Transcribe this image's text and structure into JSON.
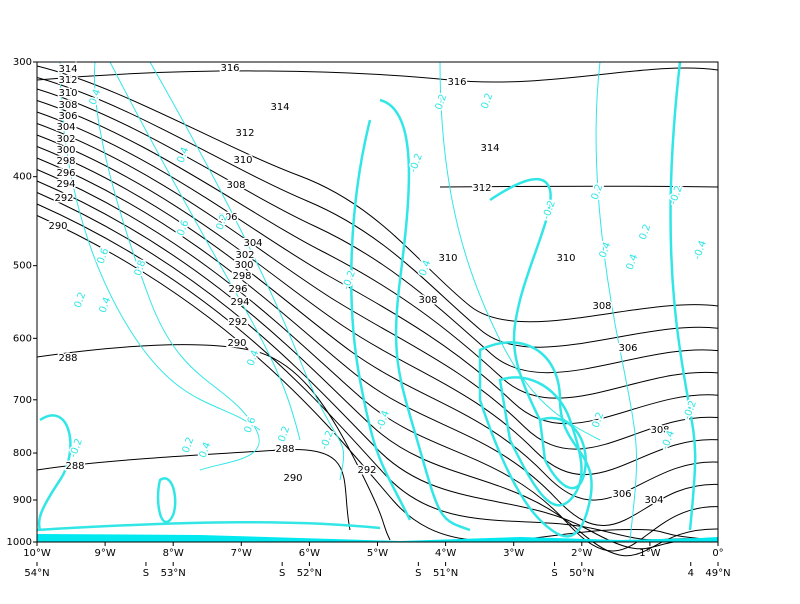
{
  "chart_data": {
    "type": "contour",
    "log_y": true,
    "ylim": [
      1000,
      300
    ],
    "yticks": [
      300,
      400,
      500,
      600,
      700,
      800,
      900,
      1000
    ],
    "xlim": [
      -10,
      0
    ],
    "xticks": [
      {
        "value": -10,
        "label": "10°W"
      },
      {
        "value": -9,
        "label": "9°W"
      },
      {
        "value": -8,
        "label": "8°W"
      },
      {
        "value": -7,
        "label": "7°W"
      },
      {
        "value": -6,
        "label": "6°W"
      },
      {
        "value": -5,
        "label": "5°W"
      },
      {
        "value": -4,
        "label": "4°W"
      },
      {
        "value": -3,
        "label": "3°W"
      },
      {
        "value": -2,
        "label": "2°W"
      },
      {
        "value": -1,
        "label": "1°W"
      },
      {
        "value": 0,
        "label": "0°"
      }
    ],
    "x2ticks": [
      {
        "value": -10,
        "label": "54°N"
      },
      {
        "value": -8.4,
        "label": "S"
      },
      {
        "value": -8,
        "label": "53°N"
      },
      {
        "value": -6.4,
        "label": "S"
      },
      {
        "value": -6,
        "label": "52°N"
      },
      {
        "value": -4.4,
        "label": "S"
      },
      {
        "value": -4,
        "label": "51°N"
      },
      {
        "value": -2.4,
        "label": "S"
      },
      {
        "value": -2,
        "label": "50°N"
      },
      {
        "value": -0.4,
        "label": "4"
      },
      {
        "value": 0,
        "label": "49°N"
      }
    ],
    "theta_color": "#000000",
    "omega_color": "#33e6e6",
    "theta_labels": [
      316,
      316,
      314,
      314,
      314,
      312,
      312,
      312,
      310,
      310,
      310,
      310,
      308,
      308,
      308,
      308,
      306,
      306,
      306,
      304,
      304,
      304,
      302,
      302,
      300,
      300,
      298,
      298,
      296,
      296,
      294,
      294,
      292,
      292,
      292,
      290,
      290,
      290,
      288,
      288,
      288,
      306,
      308
    ],
    "omega_labels": [
      0.4,
      0.2,
      0.2,
      0.4,
      -0.2,
      0.2,
      0.6,
      0.6,
      0.8,
      0.2,
      0.4,
      -0.2,
      -0.2,
      0.2,
      -0.2,
      0.2,
      0.4,
      0.4,
      -0.4,
      -0.2,
      0.2,
      0.4,
      0.4,
      0.6,
      0.2,
      -0.2,
      -0.4,
      0.4,
      -0.2,
      -0.4,
      0.2
    ]
  }
}
